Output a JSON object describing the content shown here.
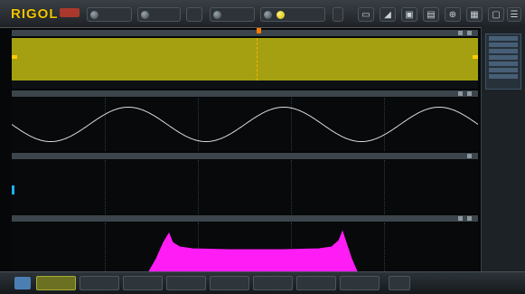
{
  "brand": {
    "logo": "RIGOL"
  },
  "colors": {
    "trace_yellow": "#e8e800",
    "trace_white": "#d9dde0",
    "fft_magenta": "#ff1cf5",
    "overview_bg": "#a4a011",
    "accent_blue": "#4b7fb3"
  },
  "toolbar": {
    "icons": [
      "horizontal-icon",
      "trigger-icon",
      "run-stop-icon",
      "measure-icon",
      "cursor-icon",
      "save-icon",
      "storage-icon",
      "utility-icon",
      "menu-icon"
    ]
  },
  "traces": {
    "sine_cycles_shown": 3,
    "fft_shape": "band"
  }
}
